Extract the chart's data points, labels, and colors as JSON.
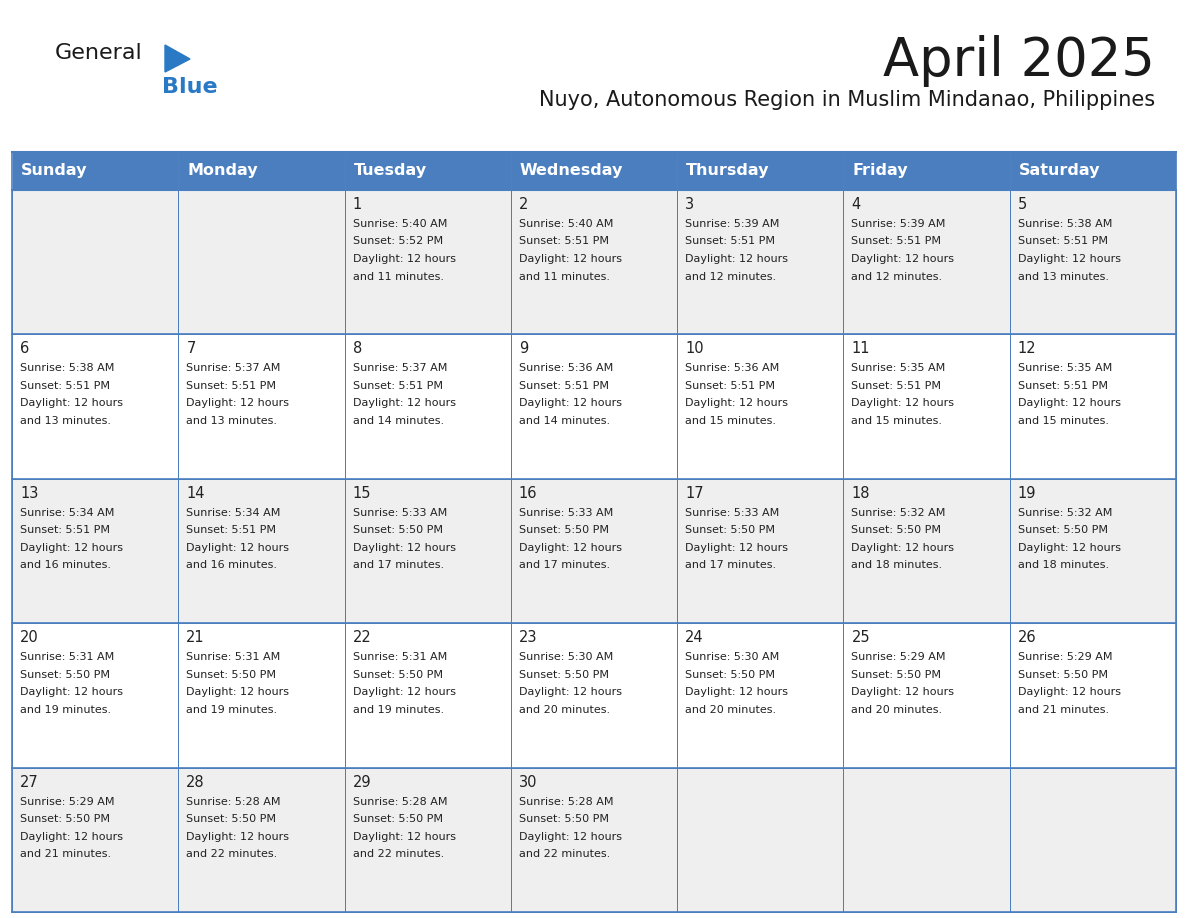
{
  "title": "April 2025",
  "subtitle": "Nuyo, Autonomous Region in Muslim Mindanao, Philippines",
  "header_bg": "#4a7ebf",
  "header_text_color": "#FFFFFF",
  "day_names": [
    "Sunday",
    "Monday",
    "Tuesday",
    "Wednesday",
    "Thursday",
    "Friday",
    "Saturday"
  ],
  "title_font_size": 38,
  "subtitle_font_size": 15,
  "cell_text_font_size": 8.0,
  "day_num_font_size": 10.5,
  "col_header_font_size": 11.5,
  "background_color": "#FFFFFF",
  "cell_bg_row1": "#EFEFEF",
  "cell_bg_row2": "#FFFFFF",
  "cell_bg_row3": "#EFEFEF",
  "cell_bg_row4": "#FFFFFF",
  "cell_bg_row5": "#EFEFEF",
  "grid_color": "#4a7ebf",
  "text_color": "#222222",
  "num_cols": 7,
  "num_data_rows": 5,
  "logo_general_color": "#1a1a1a",
  "logo_blue_color": "#2979c4",
  "logo_triangle_color": "#2979c4",
  "days": [
    {
      "date": 1,
      "col": 2,
      "row": 0,
      "sunrise": "5:40 AM",
      "sunset": "5:52 PM",
      "daylight_suffix": "11 minutes."
    },
    {
      "date": 2,
      "col": 3,
      "row": 0,
      "sunrise": "5:40 AM",
      "sunset": "5:51 PM",
      "daylight_suffix": "11 minutes."
    },
    {
      "date": 3,
      "col": 4,
      "row": 0,
      "sunrise": "5:39 AM",
      "sunset": "5:51 PM",
      "daylight_suffix": "12 minutes."
    },
    {
      "date": 4,
      "col": 5,
      "row": 0,
      "sunrise": "5:39 AM",
      "sunset": "5:51 PM",
      "daylight_suffix": "12 minutes."
    },
    {
      "date": 5,
      "col": 6,
      "row": 0,
      "sunrise": "5:38 AM",
      "sunset": "5:51 PM",
      "daylight_suffix": "13 minutes."
    },
    {
      "date": 6,
      "col": 0,
      "row": 1,
      "sunrise": "5:38 AM",
      "sunset": "5:51 PM",
      "daylight_suffix": "13 minutes."
    },
    {
      "date": 7,
      "col": 1,
      "row": 1,
      "sunrise": "5:37 AM",
      "sunset": "5:51 PM",
      "daylight_suffix": "13 minutes."
    },
    {
      "date": 8,
      "col": 2,
      "row": 1,
      "sunrise": "5:37 AM",
      "sunset": "5:51 PM",
      "daylight_suffix": "14 minutes."
    },
    {
      "date": 9,
      "col": 3,
      "row": 1,
      "sunrise": "5:36 AM",
      "sunset": "5:51 PM",
      "daylight_suffix": "14 minutes."
    },
    {
      "date": 10,
      "col": 4,
      "row": 1,
      "sunrise": "5:36 AM",
      "sunset": "5:51 PM",
      "daylight_suffix": "15 minutes."
    },
    {
      "date": 11,
      "col": 5,
      "row": 1,
      "sunrise": "5:35 AM",
      "sunset": "5:51 PM",
      "daylight_suffix": "15 minutes."
    },
    {
      "date": 12,
      "col": 6,
      "row": 1,
      "sunrise": "5:35 AM",
      "sunset": "5:51 PM",
      "daylight_suffix": "15 minutes."
    },
    {
      "date": 13,
      "col": 0,
      "row": 2,
      "sunrise": "5:34 AM",
      "sunset": "5:51 PM",
      "daylight_suffix": "16 minutes."
    },
    {
      "date": 14,
      "col": 1,
      "row": 2,
      "sunrise": "5:34 AM",
      "sunset": "5:51 PM",
      "daylight_suffix": "16 minutes."
    },
    {
      "date": 15,
      "col": 2,
      "row": 2,
      "sunrise": "5:33 AM",
      "sunset": "5:50 PM",
      "daylight_suffix": "17 minutes."
    },
    {
      "date": 16,
      "col": 3,
      "row": 2,
      "sunrise": "5:33 AM",
      "sunset": "5:50 PM",
      "daylight_suffix": "17 minutes."
    },
    {
      "date": 17,
      "col": 4,
      "row": 2,
      "sunrise": "5:33 AM",
      "sunset": "5:50 PM",
      "daylight_suffix": "17 minutes."
    },
    {
      "date": 18,
      "col": 5,
      "row": 2,
      "sunrise": "5:32 AM",
      "sunset": "5:50 PM",
      "daylight_suffix": "18 minutes."
    },
    {
      "date": 19,
      "col": 6,
      "row": 2,
      "sunrise": "5:32 AM",
      "sunset": "5:50 PM",
      "daylight_suffix": "18 minutes."
    },
    {
      "date": 20,
      "col": 0,
      "row": 3,
      "sunrise": "5:31 AM",
      "sunset": "5:50 PM",
      "daylight_suffix": "19 minutes."
    },
    {
      "date": 21,
      "col": 1,
      "row": 3,
      "sunrise": "5:31 AM",
      "sunset": "5:50 PM",
      "daylight_suffix": "19 minutes."
    },
    {
      "date": 22,
      "col": 2,
      "row": 3,
      "sunrise": "5:31 AM",
      "sunset": "5:50 PM",
      "daylight_suffix": "19 minutes."
    },
    {
      "date": 23,
      "col": 3,
      "row": 3,
      "sunrise": "5:30 AM",
      "sunset": "5:50 PM",
      "daylight_suffix": "20 minutes."
    },
    {
      "date": 24,
      "col": 4,
      "row": 3,
      "sunrise": "5:30 AM",
      "sunset": "5:50 PM",
      "daylight_suffix": "20 minutes."
    },
    {
      "date": 25,
      "col": 5,
      "row": 3,
      "sunrise": "5:29 AM",
      "sunset": "5:50 PM",
      "daylight_suffix": "20 minutes."
    },
    {
      "date": 26,
      "col": 6,
      "row": 3,
      "sunrise": "5:29 AM",
      "sunset": "5:50 PM",
      "daylight_suffix": "21 minutes."
    },
    {
      "date": 27,
      "col": 0,
      "row": 4,
      "sunrise": "5:29 AM",
      "sunset": "5:50 PM",
      "daylight_suffix": "21 minutes."
    },
    {
      "date": 28,
      "col": 1,
      "row": 4,
      "sunrise": "5:28 AM",
      "sunset": "5:50 PM",
      "daylight_suffix": "22 minutes."
    },
    {
      "date": 29,
      "col": 2,
      "row": 4,
      "sunrise": "5:28 AM",
      "sunset": "5:50 PM",
      "daylight_suffix": "22 minutes."
    },
    {
      "date": 30,
      "col": 3,
      "row": 4,
      "sunrise": "5:28 AM",
      "sunset": "5:50 PM",
      "daylight_suffix": "22 minutes."
    }
  ]
}
